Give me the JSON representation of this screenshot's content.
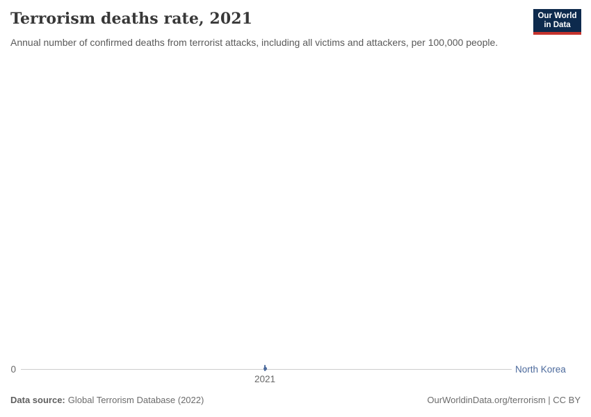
{
  "header": {
    "title": "Terrorism deaths rate, 2021",
    "subtitle": "Annual number of confirmed deaths from terrorist attacks, including all victims and attackers, per 100,000 people.",
    "logo": {
      "line1": "Our World",
      "line2": "in Data",
      "bg_color": "#0d2a4d",
      "accent_color": "#c5332d",
      "text_color": "#ffffff"
    }
  },
  "chart": {
    "y_tick_label": "0",
    "x_tick_label": "2021",
    "series_label": "North Korea",
    "series_color": "#4C6A9C",
    "gridline_color": "#cccccc",
    "tick_color": "#676767"
  },
  "chart_data": {
    "type": "line",
    "title": "Terrorism deaths rate, 2021",
    "subtitle": "Annual number of confirmed deaths from terrorist attacks, including all victims and attackers, per 100,000 people.",
    "x": [
      2021
    ],
    "series": [
      {
        "name": "North Korea",
        "values": [
          0
        ]
      }
    ],
    "xlabel": "",
    "ylabel": "",
    "ylim": [
      0,
      null
    ],
    "x_ticks": [
      "2021"
    ],
    "y_ticks": [
      "0"
    ],
    "grid": false,
    "legend_position": "end-of-line-right",
    "marker": "point-on-zero-line"
  },
  "footer": {
    "data_source_label": "Data source:",
    "data_source_value": "Global Terrorism Database (2022)",
    "attribution": "OurWorldinData.org/terrorism | CC BY"
  }
}
